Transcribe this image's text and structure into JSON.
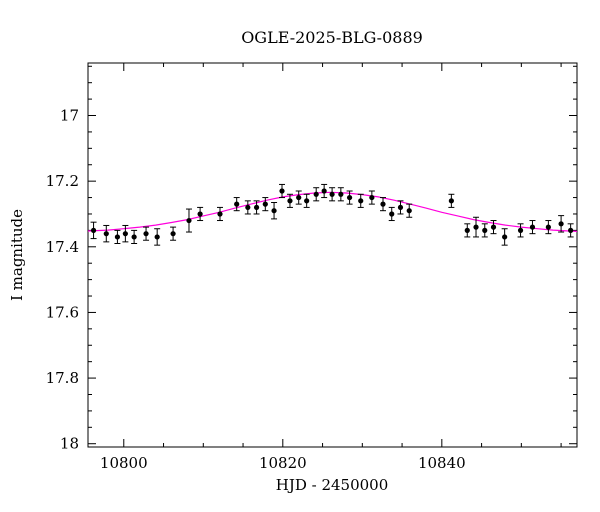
{
  "chart_data": {
    "type": "scatter",
    "title": "OGLE-2025-BLG-0889",
    "xlabel": "HJD - 2450000",
    "ylabel": "I magnitude",
    "xlim": [
      10795.5,
      10857.0
    ],
    "ylim": [
      16.84,
      18.01
    ],
    "y_axis_inverted": true,
    "grid": false,
    "legend": "none",
    "x_major_ticks": [
      10800,
      10820,
      10840
    ],
    "x_major_tick_labels": [
      "10800",
      "10820",
      "10840"
    ],
    "x_minor_step": 5,
    "y_major_ticks": [
      17.0,
      17.2,
      17.4,
      17.6,
      17.8,
      18.0
    ],
    "y_major_tick_labels": [
      "17",
      "17.2",
      "17.4",
      "17.6",
      "17.8",
      "18"
    ],
    "y_minor_step": 0.05,
    "point_color": "#000000",
    "model_color": "#ff00dd",
    "frame_color": "#000000",
    "points_columns": [
      "hjd",
      "mag",
      "err"
    ],
    "points": [
      [
        10796.2,
        17.35,
        0.025
      ],
      [
        10797.8,
        17.36,
        0.025
      ],
      [
        10799.2,
        17.37,
        0.02
      ],
      [
        10800.2,
        17.36,
        0.025
      ],
      [
        10801.3,
        17.37,
        0.02
      ],
      [
        10802.8,
        17.36,
        0.02
      ],
      [
        10804.2,
        17.37,
        0.025
      ],
      [
        10806.2,
        17.36,
        0.02
      ],
      [
        10808.2,
        17.32,
        0.035
      ],
      [
        10809.6,
        17.3,
        0.02
      ],
      [
        10812.1,
        17.3,
        0.02
      ],
      [
        10814.2,
        17.27,
        0.02
      ],
      [
        10815.6,
        17.28,
        0.02
      ],
      [
        10816.7,
        17.28,
        0.02
      ],
      [
        10817.8,
        17.27,
        0.02
      ],
      [
        10818.9,
        17.29,
        0.025
      ],
      [
        10819.9,
        17.23,
        0.02
      ],
      [
        10820.9,
        17.26,
        0.02
      ],
      [
        10822.0,
        17.25,
        0.02
      ],
      [
        10823.0,
        17.26,
        0.02
      ],
      [
        10824.2,
        17.24,
        0.02
      ],
      [
        10825.2,
        17.23,
        0.02
      ],
      [
        10826.2,
        17.24,
        0.02
      ],
      [
        10827.3,
        17.24,
        0.02
      ],
      [
        10828.4,
        17.25,
        0.02
      ],
      [
        10829.8,
        17.26,
        0.02
      ],
      [
        10831.2,
        17.25,
        0.02
      ],
      [
        10832.6,
        17.27,
        0.02
      ],
      [
        10833.7,
        17.3,
        0.02
      ],
      [
        10834.8,
        17.28,
        0.02
      ],
      [
        10835.9,
        17.29,
        0.02
      ],
      [
        10841.2,
        17.26,
        0.02
      ],
      [
        10843.2,
        17.35,
        0.02
      ],
      [
        10844.3,
        17.34,
        0.03
      ],
      [
        10845.4,
        17.35,
        0.02
      ],
      [
        10846.5,
        17.34,
        0.02
      ],
      [
        10847.9,
        17.37,
        0.025
      ],
      [
        10849.9,
        17.35,
        0.02
      ],
      [
        10851.4,
        17.34,
        0.02
      ],
      [
        10853.4,
        17.34,
        0.02
      ],
      [
        10855.0,
        17.33,
        0.025
      ],
      [
        10856.2,
        17.35,
        0.02
      ]
    ],
    "model_curve": {
      "x": [
        10795.5,
        10798,
        10800,
        10802,
        10804,
        10806,
        10808,
        10810,
        10812,
        10814,
        10816,
        10818,
        10820,
        10822,
        10824,
        10826,
        10828,
        10830,
        10832,
        10834,
        10836,
        10838,
        10840,
        10842,
        10844,
        10846,
        10848,
        10850,
        10852,
        10854,
        10856,
        10857
      ],
      "y": [
        17.352,
        17.349,
        17.345,
        17.34,
        17.334,
        17.326,
        17.317,
        17.306,
        17.295,
        17.282,
        17.27,
        17.258,
        17.248,
        17.241,
        17.236,
        17.234,
        17.236,
        17.241,
        17.248,
        17.258,
        17.27,
        17.282,
        17.295,
        17.306,
        17.317,
        17.326,
        17.334,
        17.34,
        17.345,
        17.349,
        17.352,
        17.353
      ]
    }
  }
}
